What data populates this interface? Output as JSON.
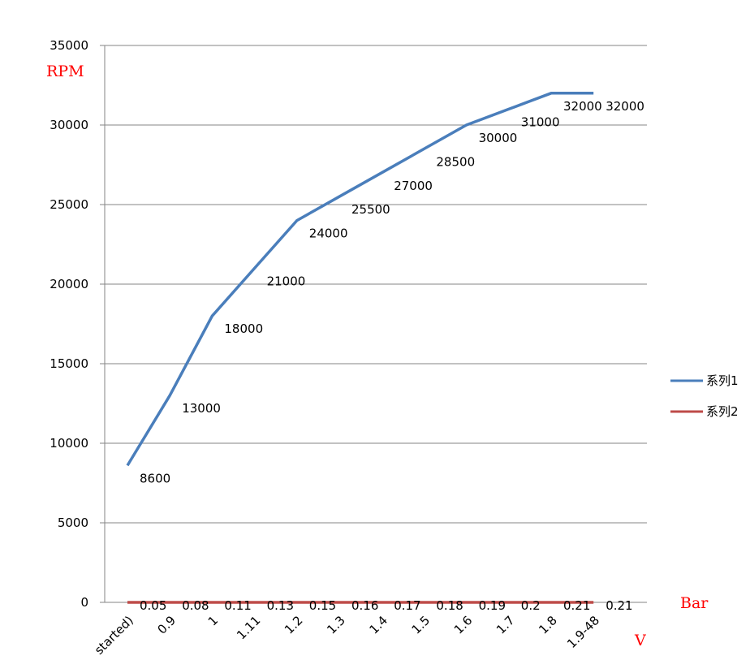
{
  "chart_data": {
    "type": "line",
    "categories": [
      "started)",
      "0.9",
      "1",
      "1.11",
      "1.2",
      "1.3",
      "1.4",
      "1.5",
      "1.6",
      "1.7",
      "1.8",
      "1.9-48"
    ],
    "series": [
      {
        "name": "系列1",
        "color": "#4a7ebb",
        "values": [
          8600,
          13000,
          18000,
          21000,
          24000,
          25500,
          27000,
          28500,
          30000,
          31000,
          32000,
          32000
        ],
        "labels": [
          "8600",
          "13000",
          "18000",
          "21000",
          "24000",
          "25500",
          "27000",
          "28500",
          "30000",
          "31000",
          "32000",
          "32000"
        ]
      },
      {
        "name": "系列2",
        "color": "#be4b48",
        "values": [
          0.05,
          0.08,
          0.11,
          0.13,
          0.15,
          0.16,
          0.17,
          0.18,
          0.19,
          0.2,
          0.21,
          0.21
        ],
        "labels": [
          "0.05",
          "0.08",
          "0.11",
          "0.13",
          "0.15",
          "0.16",
          "0.17",
          "0.18",
          "0.19",
          "0.2",
          "0.21",
          "0.21"
        ]
      }
    ],
    "yticks": [
      "0",
      "5000",
      "10000",
      "15000",
      "20000",
      "25000",
      "30000",
      "35000"
    ],
    "ylim": [
      0,
      35000
    ],
    "annotations": {
      "y_title": "RPM",
      "bar_title": "Bar",
      "x_title": "V"
    },
    "grid": true,
    "legend_position": "right"
  }
}
